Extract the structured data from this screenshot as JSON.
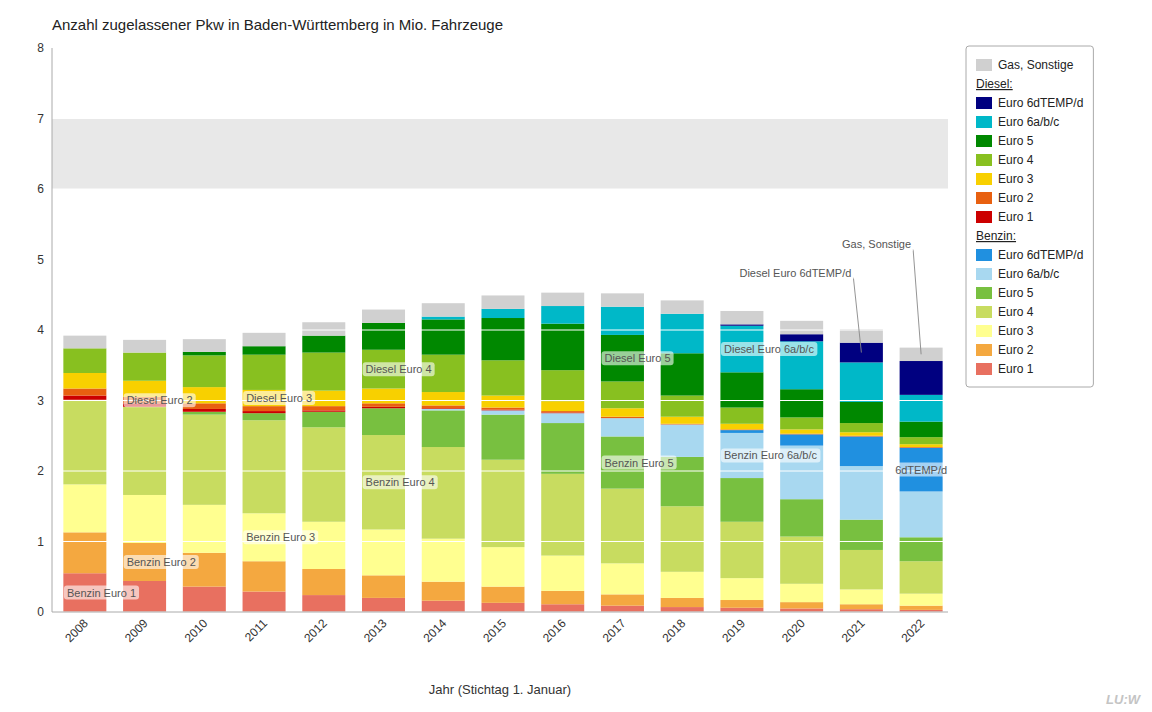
{
  "chart_data": {
    "type": "bar",
    "stacked": true,
    "title": "Anzahl zugelassener Pkw in Baden-Württemberg in Mio. Fahrzeuge",
    "xlabel": "Jahr (Stichtag 1. Januar)",
    "categories": [
      "2008",
      "2009",
      "2010",
      "2011",
      "2012",
      "2013",
      "2014",
      "2015",
      "2016",
      "2017",
      "2018",
      "2019",
      "2020",
      "2021",
      "2022"
    ],
    "ylim": [
      0,
      8
    ],
    "yticks": [
      0,
      1,
      2,
      3,
      4,
      5,
      6,
      7,
      8
    ],
    "grid": true,
    "legend": "right",
    "band": {
      "from": 6.0,
      "to": 7.0,
      "color": "#e8e8e8"
    },
    "series": [
      {
        "name": "Euro 1",
        "group": "Benzin:",
        "color": "#e87060",
        "values": [
          0.55,
          0.44,
          0.36,
          0.29,
          0.24,
          0.2,
          0.16,
          0.13,
          0.11,
          0.09,
          0.07,
          0.06,
          0.05,
          0.04,
          0.03
        ]
      },
      {
        "name": "Euro 2",
        "group": "Benzin:",
        "color": "#f4a840",
        "values": [
          0.58,
          0.54,
          0.48,
          0.43,
          0.37,
          0.32,
          0.27,
          0.23,
          0.19,
          0.16,
          0.13,
          0.11,
          0.09,
          0.07,
          0.06
        ]
      },
      {
        "name": "Euro 3",
        "group": "Benzin:",
        "color": "#ffff90",
        "values": [
          0.68,
          0.68,
          0.68,
          0.68,
          0.67,
          0.65,
          0.61,
          0.56,
          0.5,
          0.44,
          0.37,
          0.31,
          0.26,
          0.21,
          0.17
        ]
      },
      {
        "name": "Euro 4",
        "group": "Benzin:",
        "color": "#c8dc60",
        "values": [
          1.2,
          1.25,
          1.28,
          1.32,
          1.34,
          1.34,
          1.3,
          1.24,
          1.16,
          1.06,
          0.93,
          0.8,
          0.67,
          0.56,
          0.46
        ]
      },
      {
        "name": "Euro 5",
        "group": "Benzin:",
        "color": "#78c040",
        "values": [
          0.0,
          0.0,
          0.04,
          0.1,
          0.22,
          0.38,
          0.52,
          0.64,
          0.72,
          0.74,
          0.7,
          0.62,
          0.53,
          0.43,
          0.34
        ]
      },
      {
        "name": "Euro 6a/b/c",
        "group": "Benzin:",
        "color": "#a8d8f0",
        "values": [
          0.0,
          0.0,
          0.0,
          0.0,
          0.0,
          0.0,
          0.02,
          0.06,
          0.14,
          0.26,
          0.46,
          0.64,
          0.76,
          0.76,
          0.65
        ]
      },
      {
        "name": "Euro 6dTEMP/d",
        "group": "Benzin:",
        "color": "#2090e0",
        "values": [
          0.0,
          0.0,
          0.0,
          0.0,
          0.0,
          0.0,
          0.0,
          0.0,
          0.0,
          0.0,
          0.0,
          0.04,
          0.16,
          0.42,
          0.62
        ]
      },
      {
        "name": "Euro 1",
        "group": "Diesel:",
        "color": "#cc0000",
        "values": [
          0.06,
          0.05,
          0.04,
          0.03,
          0.02,
          0.02,
          0.01,
          0.01,
          0.01,
          0.0,
          0.0,
          0.0,
          0.0,
          0.0,
          0.0
        ]
      },
      {
        "name": "Euro 2",
        "group": "Diesel:",
        "color": "#e86010",
        "values": [
          0.1,
          0.09,
          0.08,
          0.07,
          0.06,
          0.05,
          0.04,
          0.03,
          0.02,
          0.02,
          0.01,
          0.01,
          0.01,
          0.01,
          0.01
        ]
      },
      {
        "name": "Euro 3",
        "group": "Diesel:",
        "color": "#f8d000",
        "values": [
          0.22,
          0.23,
          0.23,
          0.23,
          0.22,
          0.21,
          0.19,
          0.17,
          0.14,
          0.12,
          0.1,
          0.08,
          0.06,
          0.05,
          0.04
        ]
      },
      {
        "name": "Euro 4",
        "group": "Diesel:",
        "color": "#88c020",
        "values": [
          0.35,
          0.4,
          0.45,
          0.5,
          0.54,
          0.55,
          0.53,
          0.5,
          0.44,
          0.38,
          0.3,
          0.23,
          0.17,
          0.13,
          0.1
        ]
      },
      {
        "name": "Euro 5",
        "group": "Diesel:",
        "color": "#008800",
        "values": [
          0.0,
          0.0,
          0.05,
          0.12,
          0.24,
          0.38,
          0.5,
          0.6,
          0.66,
          0.66,
          0.6,
          0.5,
          0.4,
          0.3,
          0.22
        ]
      },
      {
        "name": "Euro 6a/b/c",
        "group": "Diesel:",
        "color": "#00b8c8",
        "values": [
          0.0,
          0.0,
          0.0,
          0.0,
          0.0,
          0.0,
          0.04,
          0.13,
          0.25,
          0.4,
          0.56,
          0.66,
          0.68,
          0.56,
          0.38
        ]
      },
      {
        "name": "Euro 6dTEMP/d",
        "group": "Diesel:",
        "color": "#000080",
        "values": [
          0.0,
          0.0,
          0.0,
          0.0,
          0.0,
          0.0,
          0.0,
          0.0,
          0.0,
          0.0,
          0.0,
          0.02,
          0.1,
          0.28,
          0.48
        ]
      },
      {
        "name": "Gas, Sonstige",
        "color": "#d0d0d0",
        "values": [
          0.18,
          0.18,
          0.18,
          0.19,
          0.19,
          0.19,
          0.19,
          0.19,
          0.19,
          0.19,
          0.19,
          0.19,
          0.19,
          0.19,
          0.19
        ]
      }
    ],
    "annotations": [
      {
        "text": "Benzin Euro 1"
      },
      {
        "text": "Benzin Euro 2"
      },
      {
        "text": "Benzin Euro 3"
      },
      {
        "text": "Benzin Euro 4"
      },
      {
        "text": "Benzin Euro 5"
      },
      {
        "text": "Benzin Euro 6a/b/c"
      },
      {
        "text": "Diesel Euro 2"
      },
      {
        "text": "Diesel Euro 3"
      },
      {
        "text": "Diesel Euro 4"
      },
      {
        "text": "Diesel Euro 5"
      },
      {
        "text": "Diesel Euro 6a/b/c"
      },
      {
        "text": "6dTEMP/d"
      },
      {
        "text": "Diesel Euro 6dTEMP/d"
      },
      {
        "text": "Gas, Sonstige"
      },
      {
        "text": "LU:W"
      }
    ]
  }
}
